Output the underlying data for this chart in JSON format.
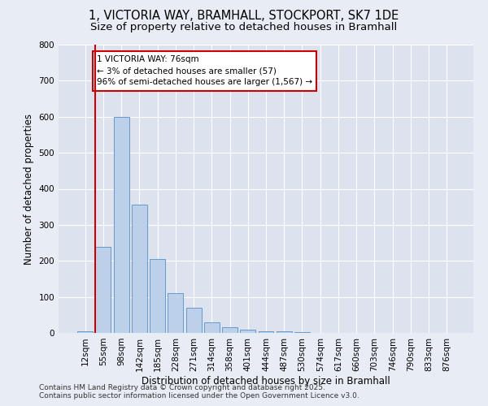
{
  "title_line1": "1, VICTORIA WAY, BRAMHALL, STOCKPORT, SK7 1DE",
  "title_line2": "Size of property relative to detached houses in Bramhall",
  "xlabel": "Distribution of detached houses by size in Bramhall",
  "ylabel": "Number of detached properties",
  "categories": [
    "12sqm",
    "55sqm",
    "98sqm",
    "142sqm",
    "185sqm",
    "228sqm",
    "271sqm",
    "314sqm",
    "358sqm",
    "401sqm",
    "444sqm",
    "487sqm",
    "530sqm",
    "574sqm",
    "617sqm",
    "660sqm",
    "703sqm",
    "746sqm",
    "790sqm",
    "833sqm",
    "876sqm"
  ],
  "values": [
    5,
    240,
    600,
    355,
    205,
    110,
    70,
    30,
    15,
    10,
    5,
    5,
    2,
    0,
    0,
    0,
    0,
    0,
    0,
    0,
    0
  ],
  "bar_color": "#bdd0e9",
  "bar_edge_color": "#6699cc",
  "marker_label_line1": "1 VICTORIA WAY: 76sqm",
  "marker_label_line2": "← 3% of detached houses are smaller (57)",
  "marker_label_line3": "96% of semi-detached houses are larger (1,567) →",
  "marker_color": "#cc0000",
  "ylim": [
    0,
    800
  ],
  "yticks": [
    0,
    100,
    200,
    300,
    400,
    500,
    600,
    700,
    800
  ],
  "bg_color": "#e8ecf4",
  "plot_bg_color": "#dce3ef",
  "footer_line1": "Contains HM Land Registry data © Crown copyright and database right 2025.",
  "footer_line2": "Contains public sector information licensed under the Open Government Licence v3.0.",
  "title_fontsize": 10.5,
  "subtitle_fontsize": 9.5,
  "axis_label_fontsize": 8.5,
  "tick_fontsize": 7.5,
  "annotation_fontsize": 7.5,
  "footer_fontsize": 6.5
}
